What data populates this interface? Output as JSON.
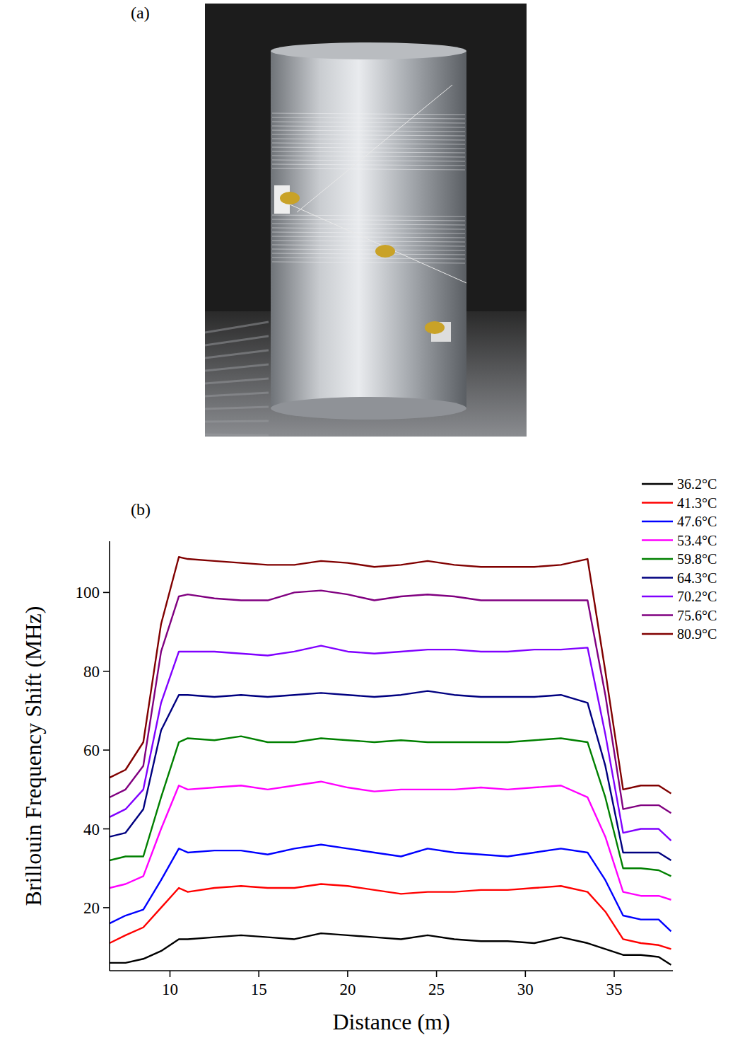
{
  "photo": {
    "panel_label": "(a)"
  },
  "chart_data": {
    "type": "line",
    "panel_label": "(b)",
    "x_label": "Distance (m)",
    "y_label": "Brillouin Frequency Shift (MHz)",
    "xlim": [
      6.6,
      38.3
    ],
    "xticks": [
      10,
      15,
      20,
      25,
      30,
      35
    ],
    "ylim": [
      4,
      113
    ],
    "yticks": [
      20,
      40,
      60,
      80,
      100
    ],
    "grid": false,
    "legend": "right",
    "x": [
      6.6,
      7.5,
      8.5,
      9.5,
      10.5,
      11,
      12.5,
      14,
      15.5,
      17,
      18.5,
      20,
      21.5,
      23,
      24.5,
      26,
      27.5,
      29,
      30.5,
      32,
      33.5,
      34.5,
      35.5,
      36.5,
      37.5,
      38.2
    ],
    "series": [
      {
        "name": "36.2°C",
        "color": "#000000",
        "values": [
          6,
          6,
          7,
          9,
          12,
          12,
          12.5,
          13,
          12.5,
          12,
          13.5,
          13,
          12.5,
          12,
          13,
          12,
          11.5,
          11.5,
          11,
          12.5,
          11,
          9.5,
          8,
          8,
          7.5,
          5.5
        ]
      },
      {
        "name": "41.3°C",
        "color": "#ff0000",
        "values": [
          11,
          13,
          15,
          20,
          25,
          24,
          25,
          25.5,
          25,
          25,
          26,
          25.5,
          24.5,
          23.5,
          24,
          24,
          24.5,
          24.5,
          25,
          25.5,
          24,
          19,
          12,
          11,
          10.5,
          9.5
        ]
      },
      {
        "name": "47.6°C",
        "color": "#0000ff",
        "values": [
          16,
          18,
          19.5,
          27,
          35,
          34,
          34.5,
          34.5,
          33.5,
          35,
          36,
          35,
          34,
          33,
          35,
          34,
          33.5,
          33,
          34,
          35,
          34,
          27,
          18,
          17,
          17,
          14
        ]
      },
      {
        "name": "53.4°C",
        "color": "#ff00ff",
        "values": [
          25,
          26,
          28,
          40,
          51,
          50,
          50.5,
          51,
          50,
          51,
          52,
          50.5,
          49.5,
          50,
          50,
          50,
          50.5,
          50,
          50.5,
          51,
          48,
          38,
          24,
          23,
          23,
          22
        ]
      },
      {
        "name": "59.8°C",
        "color": "#008000",
        "values": [
          32,
          33,
          33,
          48,
          62,
          63,
          62.5,
          63.5,
          62,
          62,
          63,
          62.5,
          62,
          62.5,
          62,
          62,
          62,
          62,
          62.5,
          63,
          62,
          48,
          30,
          30,
          29.5,
          28
        ]
      },
      {
        "name": "64.3°C",
        "color": "#000080",
        "values": [
          38,
          39,
          45,
          65,
          74,
          74,
          73.5,
          74,
          73.5,
          74,
          74.5,
          74,
          73.5,
          74,
          75,
          74,
          73.5,
          73.5,
          73.5,
          74,
          72,
          56,
          34,
          34,
          34,
          32
        ]
      },
      {
        "name": "70.2°C",
        "color": "#8000ff",
        "values": [
          43,
          45,
          50,
          72,
          85,
          85,
          85,
          84.5,
          84,
          85,
          86.5,
          85,
          84.5,
          85,
          85.5,
          85.5,
          85,
          85,
          85.5,
          85.5,
          86,
          64,
          39,
          40,
          40,
          37
        ]
      },
      {
        "name": "75.6°C",
        "color": "#800080",
        "values": [
          48,
          50,
          56,
          85,
          99,
          99.5,
          98.5,
          98,
          98,
          100,
          100.5,
          99.5,
          98,
          99,
          99.5,
          99,
          98,
          98,
          98,
          98,
          98,
          74,
          45,
          46,
          46,
          44
        ]
      },
      {
        "name": "80.9°C",
        "color": "#800000",
        "values": [
          53,
          55,
          62,
          92,
          109,
          108.5,
          108,
          107.5,
          107,
          107,
          108,
          107.5,
          106.5,
          107,
          108,
          107,
          106.5,
          106.5,
          106.5,
          107,
          108.5,
          80,
          50,
          51,
          51,
          49
        ]
      }
    ]
  }
}
